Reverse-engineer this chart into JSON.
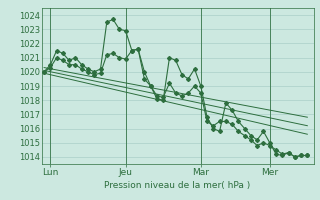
{
  "background_color": "#cce8e0",
  "grid_color": "#aacfc8",
  "line_color": "#2d6e3e",
  "tick_label_color": "#2d6e3e",
  "xlabel": "Pression niveau de la mer( hPa )",
  "xlabel_color": "#2d6e3e",
  "ylim": [
    1013.5,
    1024.5
  ],
  "yticks": [
    1014,
    1015,
    1016,
    1017,
    1018,
    1019,
    1020,
    1021,
    1022,
    1023,
    1024
  ],
  "xtick_labels": [
    "Lun",
    "Jeu",
    "Mar",
    "Mer"
  ],
  "xtick_positions": [
    0.5,
    6.5,
    12.5,
    18.0
  ],
  "vline_positions": [
    0.5,
    6.5,
    12.5,
    18.0
  ],
  "xlim": [
    -0.2,
    21.5
  ],
  "series1_x": [
    0.0,
    0.5,
    1.0,
    1.5,
    2.0,
    2.5,
    3.0,
    3.5,
    4.0,
    4.5,
    5.0,
    5.5,
    6.0,
    6.5,
    7.0,
    7.5,
    8.0,
    8.5,
    9.0,
    9.5,
    10.0,
    10.5,
    11.0,
    11.5,
    12.0,
    12.5,
    13.0,
    13.5,
    14.0,
    14.5,
    15.0,
    15.5,
    16.0,
    16.5,
    17.0,
    17.5,
    18.0,
    18.5,
    19.0,
    19.5,
    20.0,
    20.5,
    21.0
  ],
  "series1_y": [
    1020.0,
    1020.5,
    1021.5,
    1021.3,
    1020.8,
    1021.0,
    1020.5,
    1020.2,
    1020.0,
    1020.2,
    1023.5,
    1023.7,
    1023.0,
    1022.9,
    1021.5,
    1021.6,
    1020.0,
    1019.0,
    1018.1,
    1018.0,
    1021.0,
    1020.8,
    1019.8,
    1019.5,
    1020.2,
    1019.0,
    1016.8,
    1016.0,
    1015.8,
    1017.8,
    1017.3,
    1016.5,
    1016.0,
    1015.5,
    1015.2,
    1015.8,
    1015.0,
    1014.2,
    1014.1,
    1014.3,
    1014.0,
    1014.1,
    1014.1
  ],
  "series2_x": [
    0.0,
    0.5,
    1.0,
    1.5,
    2.0,
    2.5,
    3.0,
    3.5,
    4.0,
    4.5,
    5.0,
    5.5,
    6.0,
    6.5,
    7.0,
    7.5,
    8.0,
    8.5,
    9.0,
    9.5,
    10.0,
    10.5,
    11.0,
    11.5,
    12.0,
    12.5,
    13.0,
    13.5,
    14.0,
    14.5,
    15.0,
    15.5,
    16.0,
    16.5,
    17.0,
    17.5,
    18.0,
    18.5,
    19.0,
    19.5,
    20.0,
    20.5,
    21.0
  ],
  "series2_y": [
    1020.0,
    1020.3,
    1021.0,
    1020.8,
    1020.5,
    1020.5,
    1020.2,
    1020.0,
    1019.8,
    1019.9,
    1021.2,
    1021.3,
    1021.0,
    1020.9,
    1021.5,
    1021.6,
    1019.5,
    1019.0,
    1018.3,
    1018.2,
    1019.2,
    1018.5,
    1018.3,
    1018.5,
    1019.0,
    1018.5,
    1016.5,
    1016.2,
    1016.5,
    1016.5,
    1016.3,
    1015.8,
    1015.5,
    1015.2,
    1014.8,
    1015.0,
    1014.8,
    1014.5,
    1014.2,
    1014.3,
    1014.0,
    1014.1,
    1014.1
  ],
  "trend_lines": [
    {
      "x": [
        0.0,
        21.0
      ],
      "y": [
        1020.3,
        1016.8
      ]
    },
    {
      "x": [
        0.0,
        21.0
      ],
      "y": [
        1020.1,
        1016.2
      ]
    },
    {
      "x": [
        0.0,
        21.0
      ],
      "y": [
        1019.9,
        1015.6
      ]
    }
  ]
}
